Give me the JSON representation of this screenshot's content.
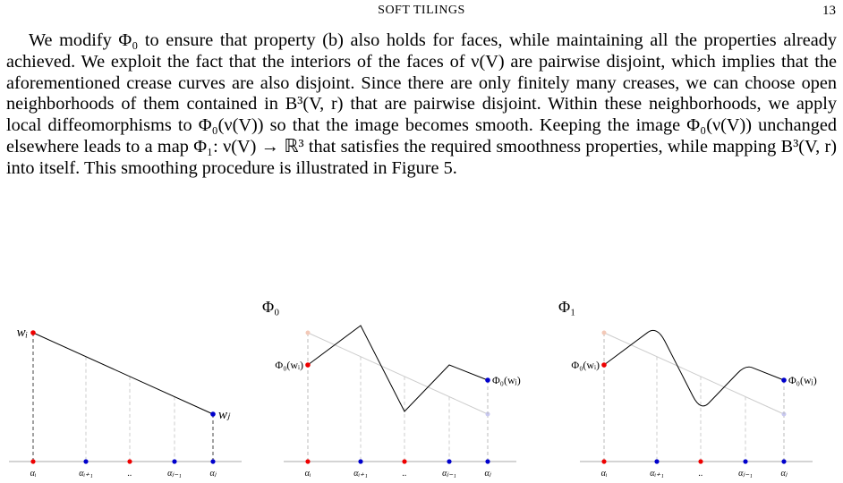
{
  "header": {
    "title": "SOFT TILINGS",
    "page": "13"
  },
  "paragraph": "We modify Φ₀ to ensure that property (b) also holds for faces, while maintaining all the properties already achieved. We exploit the fact that the interiors of the faces of ν(V) are pairwise disjoint, which implies that the aforementioned crease curves are also disjoint. Since there are only finitely many creases, we can choose open neighborhoods of them contained in B³(V, r) that are pairwise disjoint. Within these neighborhoods, we apply local diffeomorphisms to Φ₀(ν(V)) so that the image becomes smooth. Keeping the image Φ₀(ν(V)) unchanged elsewhere leads to a map Φ₁: ν(V) → ℝ³ that satisfies the required smoothness properties, while mapping B³(V, r) into itself. This smoothing procedure is illustrated in Figure 5.",
  "figure": {
    "panels": [
      {
        "start": "wᵢ",
        "end": "wⱼ",
        "alphas": [
          "αᵢ",
          "αᵢ₊₁",
          "..",
          "αⱼ₋₁",
          "αⱼ"
        ]
      },
      {
        "title": "Φ₀",
        "start": "Φ₀(wᵢ)",
        "end": "Φ₀(wⱼ)",
        "alphas": [
          "αᵢ",
          "αᵢ₊₁",
          "..",
          "αⱼ₋₁",
          "αⱼ"
        ]
      },
      {
        "title": "Φ₁",
        "start": "Φ₀(wᵢ)",
        "end": "Φ₀(wⱼ)",
        "alphas": [
          "αᵢ",
          "αᵢ₊₁",
          "..",
          "αⱼ₋₁",
          "αⱼ"
        ]
      }
    ]
  }
}
